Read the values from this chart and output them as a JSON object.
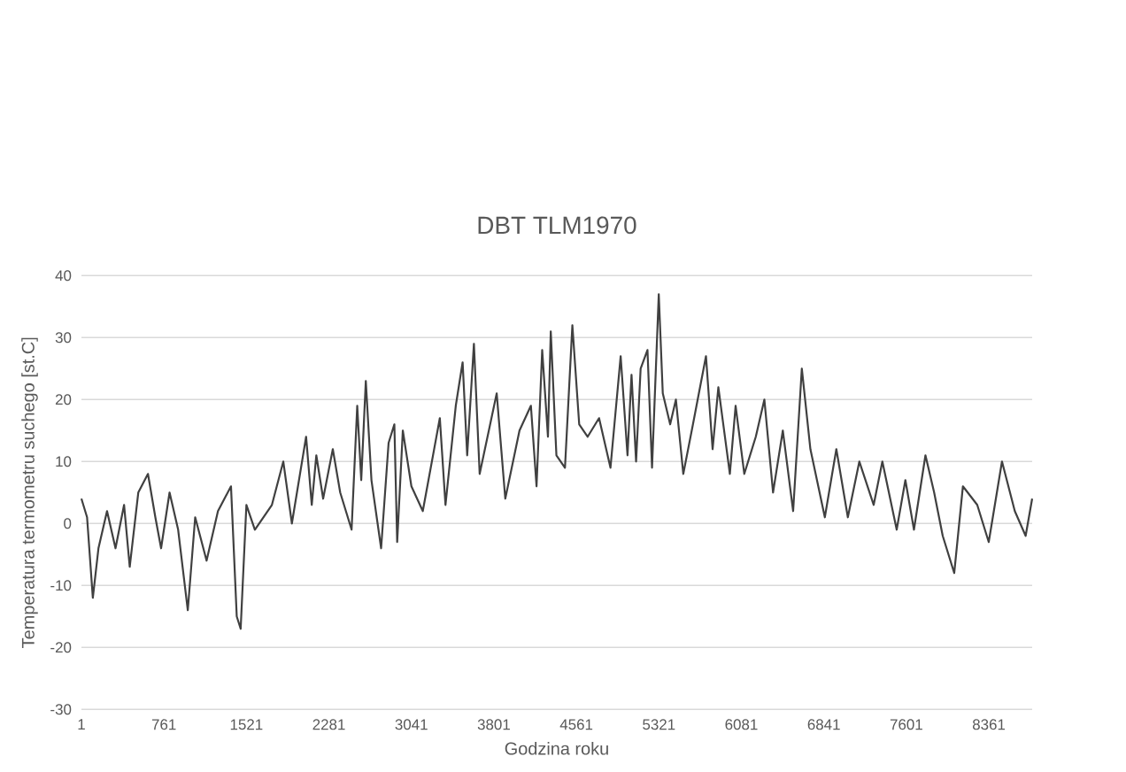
{
  "chart_data": {
    "type": "line",
    "title": "DBT TLM1970",
    "xlabel": "Godzina roku",
    "ylabel": "Temperatura termometru suchego [st.C]",
    "x": [
      1,
      53,
      106,
      158,
      237,
      315,
      394,
      446,
      525,
      614,
      682,
      735,
      813,
      892,
      981,
      1049,
      1154,
      1259,
      1379,
      1432,
      1468,
      1521,
      1599,
      1756,
      1861,
      1940,
      2071,
      2123,
      2165,
      2228,
      2317,
      2385,
      2490,
      2542,
      2579,
      2621,
      2673,
      2762,
      2831,
      2884,
      2910,
      2962,
      3041,
      3146,
      3303,
      3355,
      3450,
      3513,
      3555,
      3617,
      3670,
      3827,
      3906,
      4037,
      4142,
      4194,
      4246,
      4299,
      4325,
      4377,
      4456,
      4524,
      4587,
      4665,
      4770,
      4875,
      4969,
      5032,
      5069,
      5111,
      5153,
      5216,
      5258,
      5320,
      5357,
      5425,
      5478,
      5546,
      5635,
      5755,
      5816,
      5869,
      5975,
      6028,
      6108,
      6214,
      6293,
      6373,
      6463,
      6558,
      6638,
      6717,
      6850,
      6956,
      7062,
      7168,
      7300,
      7380,
      7512,
      7592,
      7671,
      7777,
      7857,
      7936,
      8042,
      8122,
      8254,
      8360,
      8482,
      8600,
      8700,
      8760
    ],
    "series": [
      {
        "color": "#404040",
        "values": [
          4,
          1,
          -12,
          -4,
          2,
          -4,
          3,
          -7,
          5,
          8,
          1,
          -4,
          5,
          -1,
          -14,
          1,
          -6,
          2,
          6,
          -15,
          -17,
          3,
          -1,
          3,
          10,
          0,
          14,
          3,
          11,
          4,
          12,
          5,
          -1,
          19,
          7,
          23,
          7,
          -4,
          13,
          16,
          -3,
          15,
          6,
          2,
          17,
          3,
          19,
          26,
          11,
          29,
          8,
          21,
          4,
          15,
          19,
          6,
          28,
          14,
          31,
          11,
          9,
          32,
          16,
          14,
          17,
          9,
          27,
          11,
          24,
          10,
          25,
          28,
          9,
          37,
          21,
          16,
          20,
          8,
          16,
          27,
          12,
          22,
          8,
          19,
          8,
          14,
          20,
          5,
          15,
          2,
          25,
          12,
          1,
          12,
          1,
          10,
          3,
          10,
          -1,
          7,
          -1,
          11,
          5,
          -2,
          -8,
          6,
          3,
          -3,
          10,
          2,
          -2,
          4
        ]
      }
    ],
    "xlim": [
      1,
      8760
    ],
    "xticks": [
      1,
      761,
      1521,
      2281,
      3041,
      3801,
      4561,
      5321,
      6081,
      6841,
      7601,
      8361
    ],
    "ylim": [
      -30,
      40
    ],
    "yticks": [
      -30,
      -20,
      -10,
      0,
      10,
      20,
      30,
      40
    ],
    "grid": "y"
  }
}
